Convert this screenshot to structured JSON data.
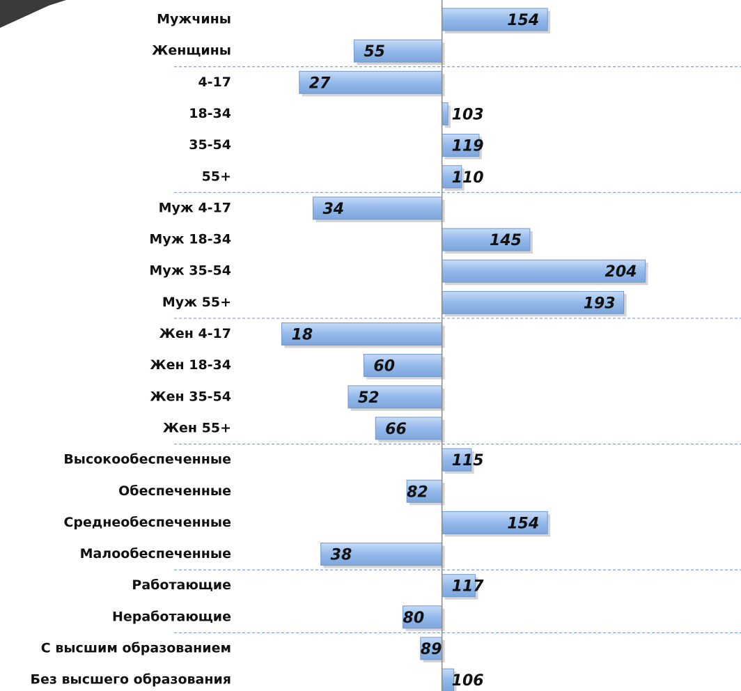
{
  "chart_data": {
    "type": "bar",
    "orientation": "horizontal",
    "baseline": 100,
    "categories": [
      "Мужчины",
      "Женщины",
      "4-17",
      "18-34",
      "35-54",
      "55+",
      "Муж 4-17",
      "Муж 18-34",
      "Муж 35-54",
      "Муж 55+",
      "Жен 4-17",
      "Жен 18-34",
      "Жен 35-54",
      "Жен 55+",
      "Высокообеспеченные",
      "Обеспеченные",
      "Среднеобеспеченные",
      "Малообеспеченные",
      "Работающие",
      "Неработающие",
      "С высшим образованием",
      "Без высшего образования"
    ],
    "values": [
      154,
      55,
      27,
      103,
      119,
      110,
      34,
      145,
      204,
      193,
      18,
      60,
      52,
      66,
      115,
      82,
      154,
      38,
      117,
      80,
      89,
      106
    ],
    "color": "#8db4e8",
    "xlim": [
      -5,
      253
    ]
  }
}
